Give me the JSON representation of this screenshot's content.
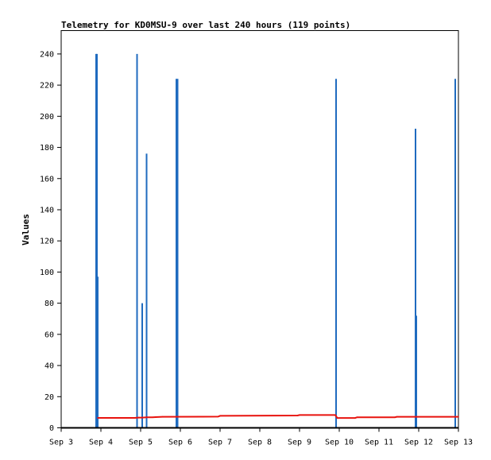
{
  "chart_data": {
    "type": "bar",
    "title": "Telemetry for KD0MSU-9 over last 240 hours (119 points)",
    "xlabel": "",
    "ylabel": "Values",
    "xlim": [
      "Sep 3",
      "Sep 13"
    ],
    "ylim": [
      0,
      255
    ],
    "y_ticks": [
      0,
      20,
      40,
      60,
      80,
      100,
      120,
      140,
      160,
      180,
      200,
      220,
      240
    ],
    "x_ticks": [
      "Sep 3",
      "Sep 4",
      "Sep 5",
      "Sep 6",
      "Sep 7",
      "Sep 8",
      "Sep 9",
      "Sep 10",
      "Sep 11",
      "Sep 12",
      "Sep 13"
    ],
    "grid": false,
    "legend": "none",
    "series": [
      {
        "color": "#1f6bbf",
        "style": "spikes",
        "points": [
          {
            "x": 0.88,
            "y": 240
          },
          {
            "x": 0.9,
            "y": 240
          },
          {
            "x": 0.92,
            "y": 97
          },
          {
            "x": 1.91,
            "y": 240
          },
          {
            "x": 2.04,
            "y": 80
          },
          {
            "x": 2.15,
            "y": 176
          },
          {
            "x": 2.9,
            "y": 224
          },
          {
            "x": 2.93,
            "y": 224
          },
          {
            "x": 6.92,
            "y": 224
          },
          {
            "x": 8.92,
            "y": 192
          },
          {
            "x": 8.94,
            "y": 72
          },
          {
            "x": 9.92,
            "y": 224
          }
        ]
      },
      {
        "color": "#e8130e",
        "style": "step-line",
        "points": [
          {
            "x": 0.92,
            "y": 6.4
          },
          {
            "x": 1.85,
            "y": 6.4
          },
          {
            "x": 1.95,
            "y": 6.6
          },
          {
            "x": 2.05,
            "y": 6.6
          },
          {
            "x": 2.15,
            "y": 6.8
          },
          {
            "x": 2.3,
            "y": 6.8
          },
          {
            "x": 2.38,
            "y": 6.9
          },
          {
            "x": 2.55,
            "y": 7.1
          },
          {
            "x": 3.95,
            "y": 7.2
          },
          {
            "x": 4.0,
            "y": 7.7
          },
          {
            "x": 5.95,
            "y": 7.9
          },
          {
            "x": 6.0,
            "y": 8.2
          },
          {
            "x": 6.9,
            "y": 8.2
          },
          {
            "x": 6.95,
            "y": 6.3
          },
          {
            "x": 7.4,
            "y": 6.3
          },
          {
            "x": 7.45,
            "y": 6.8
          },
          {
            "x": 8.4,
            "y": 6.8
          },
          {
            "x": 8.45,
            "y": 7.1
          },
          {
            "x": 10.0,
            "y": 7.1
          }
        ]
      }
    ]
  }
}
